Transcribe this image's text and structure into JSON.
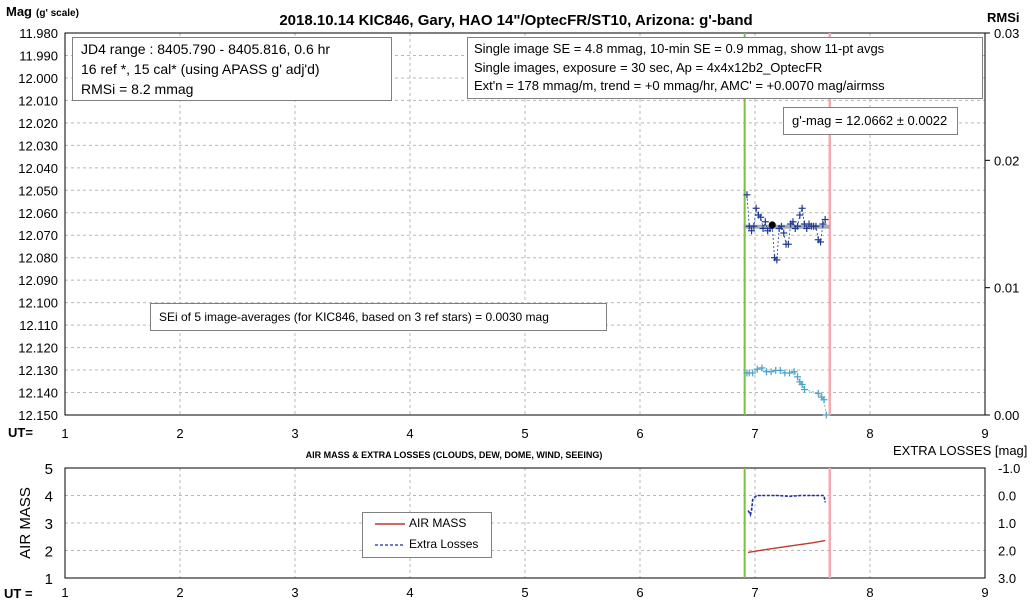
{
  "colors": {
    "mag_series": "#1f3a93",
    "rms_series": "#4aa3c8",
    "trend": "#9aa0a0",
    "mean_point": "#000000",
    "start_marker": "#7ac142",
    "end_marker": "#f4aab0",
    "airmass": "#c0392b",
    "extra_losses": "#1b2fa0",
    "grid": "#b8b8b8"
  },
  "chart_data": [
    {
      "type": "scatter",
      "title": "2018.10.14 KIC846, Gary, HAO 14\"/OptecFR/ST10, Arizona: g'-band",
      "ylabel_main": "Mag",
      "ylabel_sub": "(g' scale)",
      "y2label": "RMSi",
      "xaxis_label": "UT=",
      "xlim": [
        1,
        9
      ],
      "ylim": [
        12.15,
        11.98
      ],
      "y2lim": [
        0.0,
        0.03
      ],
      "xticks": [
        "1",
        "2",
        "3",
        "4",
        "5",
        "6",
        "7",
        "8",
        "9"
      ],
      "yticks": [
        "11.980",
        "11.990",
        "12.000",
        "12.010",
        "12.020",
        "12.030",
        "12.040",
        "12.050",
        "12.060",
        "12.070",
        "12.080",
        "12.090",
        "12.100",
        "12.110",
        "12.120",
        "12.130",
        "12.140",
        "12.150"
      ],
      "y2ticks": [
        "0.03",
        "0.02",
        "0.01",
        "0.00"
      ],
      "grid": true,
      "start_marker_ut": 6.91,
      "end_marker_ut": 7.65,
      "trend_line": {
        "x": [
          6.9,
          7.65
        ],
        "y": [
          12.0662,
          12.0662
        ]
      },
      "mean_point": {
        "x": 7.15,
        "y": 12.0654
      },
      "mag_series": {
        "x": [
          6.93,
          6.95,
          6.97,
          6.99,
          7.01,
          7.03,
          7.05,
          7.07,
          7.09,
          7.11,
          7.13,
          7.15,
          7.17,
          7.19,
          7.21,
          7.23,
          7.25,
          7.27,
          7.29,
          7.31,
          7.33,
          7.35,
          7.37,
          7.39,
          7.41,
          7.43,
          7.45,
          7.47,
          7.49,
          7.51,
          7.53,
          7.55,
          7.57,
          7.59,
          7.61
        ],
        "y": [
          12.052,
          12.066,
          12.068,
          12.066,
          12.058,
          12.061,
          12.062,
          12.067,
          12.064,
          12.068,
          12.067,
          12.066,
          12.08,
          12.081,
          12.067,
          12.066,
          12.069,
          12.074,
          12.074,
          12.065,
          12.064,
          12.067,
          12.066,
          12.061,
          12.058,
          12.065,
          12.067,
          12.065,
          12.066,
          12.066,
          12.066,
          12.072,
          12.073,
          12.065,
          12.063
        ]
      },
      "rms_series": {
        "x": [
          6.93,
          6.95,
          6.98,
          7.02,
          7.06,
          7.1,
          7.14,
          7.18,
          7.22,
          7.26,
          7.3,
          7.34,
          7.37,
          7.39,
          7.41,
          7.43,
          7.55,
          7.58,
          7.6,
          7.62
        ],
        "y": [
          0.0033,
          0.0033,
          0.0033,
          0.0036,
          0.0037,
          0.0034,
          0.0034,
          0.0035,
          0.0035,
          0.0033,
          0.0033,
          0.0034,
          0.003,
          0.0026,
          0.0024,
          0.002,
          0.0017,
          0.0014,
          0.0012,
          0.0
        ]
      }
    },
    {
      "type": "line",
      "title": "AIR MASS & EXTRA LOSSES (CLOUDS, DEW, DOME, WIND, SEEING)",
      "ylabel": "AIR MASS",
      "y2label": "EXTRA LOSSES [mag]",
      "xaxis_label": "UT =",
      "xlim": [
        1,
        9
      ],
      "ylim": [
        1,
        5
      ],
      "y2lim": [
        3.0,
        -1.0
      ],
      "xticks": [
        "1",
        "2",
        "3",
        "4",
        "5",
        "6",
        "7",
        "8",
        "9"
      ],
      "yticks": [
        "5",
        "4",
        "3",
        "2",
        "1"
      ],
      "y2ticks": [
        "-1.0",
        "0.0",
        "1.0",
        "2.0",
        "3.0"
      ],
      "grid": true,
      "start_marker_ut": 6.91,
      "end_marker_ut": 7.65,
      "series": [
        {
          "name": "AIR MASS",
          "x": [
            6.94,
            7.1,
            7.3,
            7.5,
            7.61
          ],
          "y": [
            1.93,
            2.04,
            2.16,
            2.28,
            2.36
          ]
        },
        {
          "name": "Extra Losses",
          "x": [
            6.94,
            6.95,
            6.96,
            6.97,
            6.98,
            7.0,
            7.02,
            7.05,
            7.1,
            7.2,
            7.3,
            7.4,
            7.5,
            7.58,
            7.6,
            7.61
          ],
          "y": [
            0.55,
            0.62,
            0.7,
            0.55,
            0.15,
            0.05,
            0.0,
            0.0,
            0.0,
            0.0,
            0.03,
            0.0,
            0.0,
            0.0,
            0.0,
            0.25
          ]
        }
      ],
      "legend_position": "center-left"
    }
  ],
  "annotations": {
    "box_left": {
      "line1": "JD4 range : 8405.790 - 8405.816,  0.6  hr",
      "line2": "16 ref *, 15 cal* (using APASS g' adj'd)",
      "line3": "RMSi = 8.2 mmag"
    },
    "box_right": {
      "line1": "Single image SE = 4.8 mmag, 10-min SE = 0.9 mmag, show  11-pt avgs",
      "line2": "Single images, exposure = 30 sec, Ap = 4x4x12b2_OptecFR",
      "line3": "Ext'n = 178 mmag/m, trend =  +0 mmag/hr, AMC' = +0.0070 mag/airmss"
    },
    "gmag": "g'-mag = 12.0662 ± 0.0022",
    "sei": "SEi of 5 image-averages (for KIC846, based on 3 ref stars) = 0.0030 mag"
  }
}
